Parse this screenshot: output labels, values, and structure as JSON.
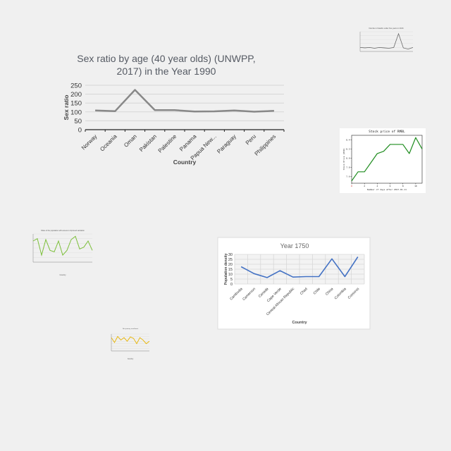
{
  "chart_data": [
    {
      "type": "line",
      "title_lines": [
        "Sex ratio by age (40 year olds) (UNWPP,",
        "2017) in the Year 1990"
      ],
      "xlabel": "Country",
      "ylabel": "Sex ratio",
      "categories": [
        "Norway",
        "Oceania",
        "Oman",
        "Pakistan",
        "Palestine",
        "Panama",
        "Papua New...",
        "Paraguay",
        "Peru",
        "Philippines"
      ],
      "values": [
        108,
        104,
        224,
        110,
        110,
        102,
        103,
        108,
        101,
        106
      ],
      "yticks": [
        "0",
        "50",
        "100",
        "150",
        "200",
        "250"
      ],
      "ylim": [
        0,
        250
      ],
      "grid": true,
      "legend": "none",
      "color": "#888888"
    },
    {
      "type": "line",
      "title": "Year 1750",
      "xlabel": "Country",
      "ylabel": "Population density",
      "categories": [
        "Cambodia",
        "Cameroon",
        "Canada",
        "Cape Verde",
        "Central African Republic",
        "Chad",
        "Chile",
        "China",
        "Colombia",
        "Comoros"
      ],
      "values": [
        17.5,
        10.5,
        6.5,
        13.5,
        7,
        7.5,
        7.5,
        25.5,
        7.5,
        27.5
      ],
      "yticks": [
        "0",
        "5",
        "10",
        "15",
        "20",
        "25",
        "30"
      ],
      "ylim": [
        0,
        30
      ],
      "grid": true,
      "legend": "none",
      "color": "#4472c4"
    },
    {
      "type": "line",
      "title": "Number of deaths under five years in 2016",
      "values": [
        10,
        9,
        10,
        8,
        10,
        9,
        8,
        10,
        45,
        9,
        6,
        10
      ],
      "ylim": [
        0,
        50
      ],
      "color": "#666666"
    },
    {
      "type": "line",
      "title": "Stock price of RMBL",
      "xlabel": "Number of days after 2017-01-11",
      "ylabel": "Stock Price (USD)",
      "x": [
        0,
        1,
        2,
        3,
        4,
        5,
        6,
        7,
        8,
        9,
        10,
        11
      ],
      "values": [
        7.5,
        7.7,
        7.7,
        7.9,
        8.1,
        8.15,
        8.3,
        8.3,
        8.3,
        8.1,
        8.45,
        8.2
      ],
      "yticks": [
        "7.6",
        "7.8",
        "8.0",
        "8.2",
        "8.4"
      ],
      "xticks": [
        "0",
        "2",
        "4",
        "6",
        "8",
        "10"
      ],
      "ylim": [
        7.45,
        8.5
      ],
      "xlim": [
        0,
        11
      ],
      "color": "#1e8c1e"
    },
    {
      "type": "line",
      "title": "Share of the population with access to improved sanitation",
      "xlabel": "Country",
      "values": [
        85,
        90,
        55,
        88,
        65,
        62,
        85,
        55,
        65,
        88,
        95,
        68,
        72,
        85,
        65
      ],
      "ylim": [
        40,
        100
      ],
      "color": "#7cbf3a"
    },
    {
      "type": "line",
      "title": "Net primary enrollment",
      "xlabel": "Country",
      "values": [
        55,
        35,
        60,
        45,
        55,
        40,
        58,
        52,
        30,
        55,
        45,
        30,
        40
      ],
      "ylim": [
        0,
        70
      ],
      "color": "#e8b400"
    }
  ]
}
